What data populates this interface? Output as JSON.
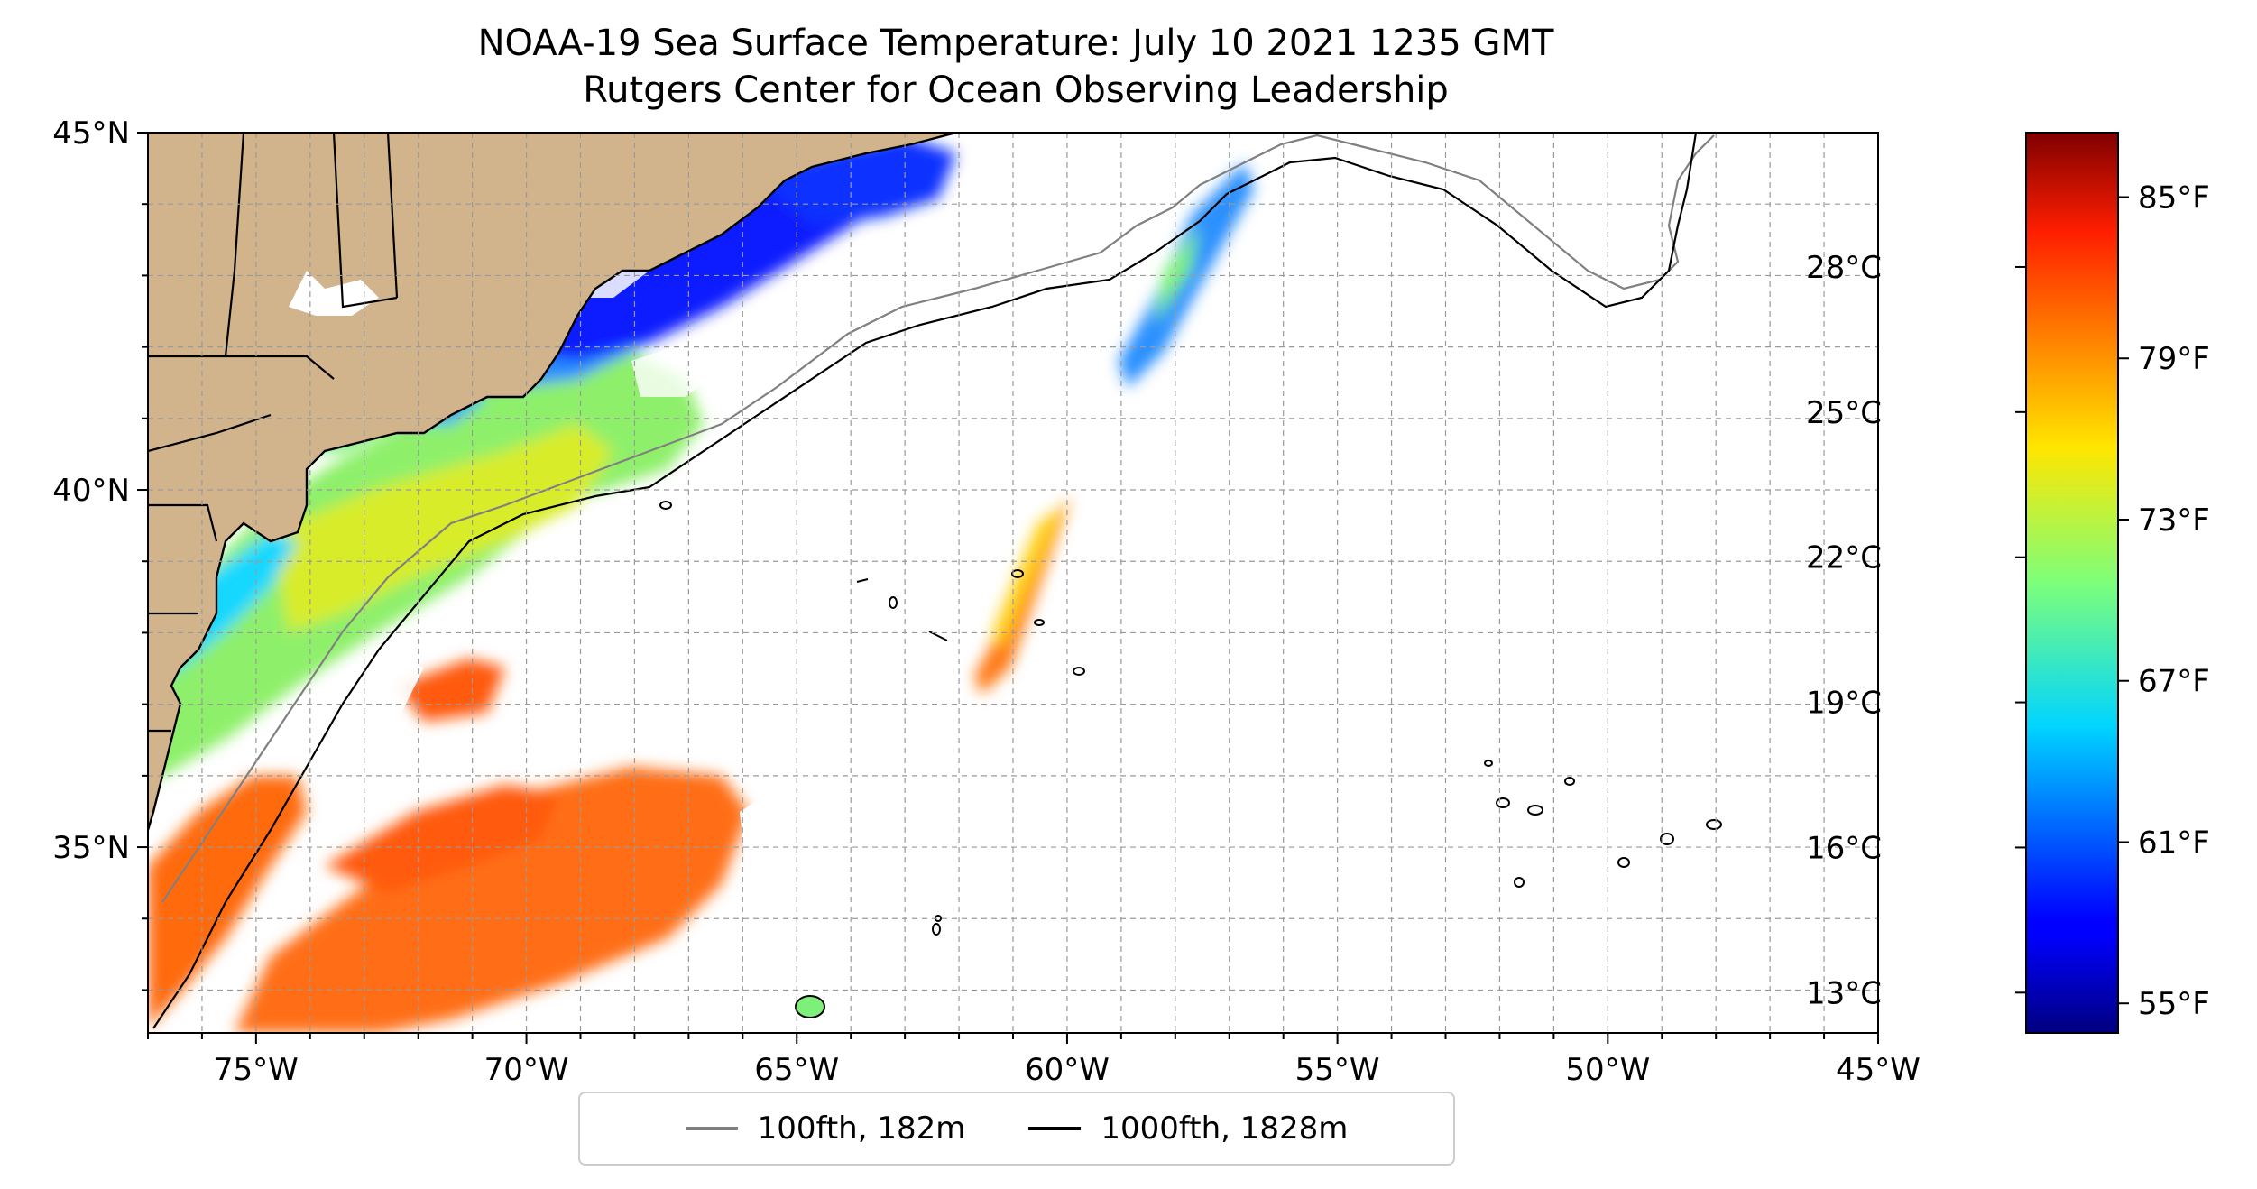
{
  "title": {
    "line1": "NOAA-19 Sea Surface Temperature: July 10 2021 1235 GMT",
    "line2": "Rutgers Center for Ocean Observing Leadership"
  },
  "map": {
    "lon_range": [
      -77,
      -45
    ],
    "lat_range": [
      32.4,
      45
    ],
    "grid": true,
    "lon_ticks": [
      {
        "value": -75,
        "label": "75°W"
      },
      {
        "value": -70,
        "label": "70°W"
      },
      {
        "value": -65,
        "label": "65°W"
      },
      {
        "value": -60,
        "label": "60°W"
      },
      {
        "value": -55,
        "label": "55°W"
      },
      {
        "value": -50,
        "label": "50°W"
      },
      {
        "value": -45,
        "label": "45°W"
      }
    ],
    "lat_ticks": [
      {
        "value": 45,
        "label": "45°N"
      },
      {
        "value": 40,
        "label": "40°N"
      },
      {
        "value": 35,
        "label": "35°N"
      }
    ],
    "colors": {
      "land": "#d2b48c",
      "ocean_nodata": "#ffffff",
      "shelf_100fth": "#808080",
      "slope_1000fth": "#000000"
    }
  },
  "colorbar": {
    "celsius_ticks": [
      "28°C",
      "25°C",
      "22°C",
      "19°C",
      "16°C",
      "13°C"
    ],
    "fahrenheit_ticks": [
      "85°F",
      "79°F",
      "73°F",
      "67°F",
      "61°F",
      "55°F"
    ],
    "colormap": "jet"
  },
  "legend": {
    "items": [
      {
        "label": "100fth, 182m",
        "color": "#808080"
      },
      {
        "label": "1000fth, 1828m",
        "color": "#000000"
      }
    ]
  }
}
